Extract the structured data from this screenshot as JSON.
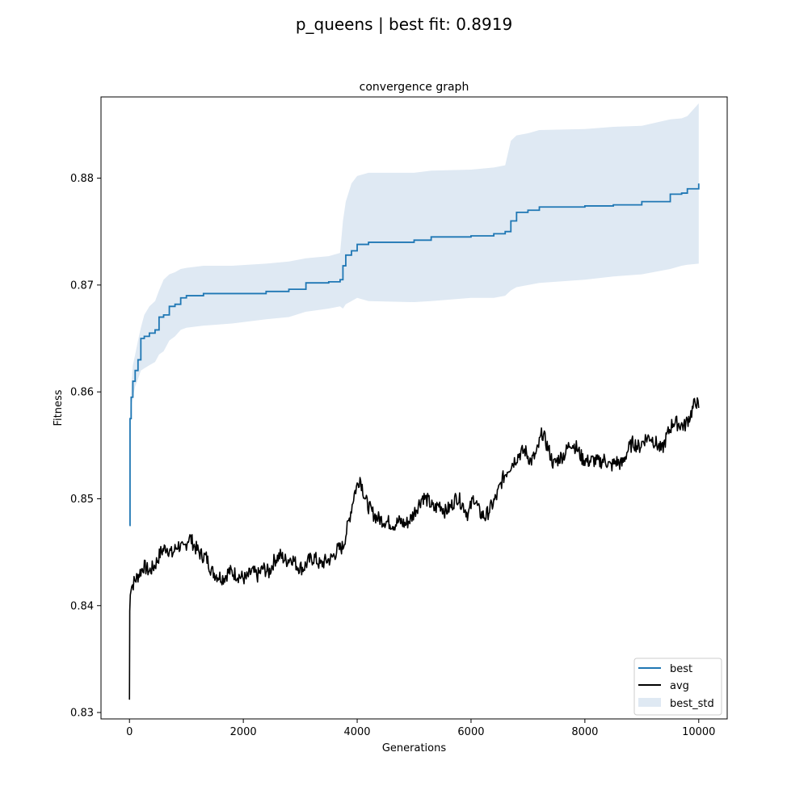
{
  "figure": {
    "suptitle": "p_queens | best fit: 0.8919"
  },
  "chart_data": {
    "type": "line",
    "title": "convergence graph",
    "xlabel": "Generations",
    "ylabel": "Fitness",
    "xlim": [
      -500,
      10500
    ],
    "ylim": [
      0.8294,
      0.8876
    ],
    "xticks": [
      0,
      2000,
      4000,
      6000,
      8000,
      10000
    ],
    "xtick_labels": [
      "0",
      "2000",
      "4000",
      "6000",
      "8000",
      "10000"
    ],
    "yticks": [
      0.83,
      0.84,
      0.85,
      0.86,
      0.87,
      0.88
    ],
    "ytick_labels": [
      "0.83",
      "0.84",
      "0.85",
      "0.86",
      "0.87",
      "0.88"
    ],
    "grid": false,
    "legend_position": "lower-right",
    "series": [
      {
        "name": "best",
        "kind": "line",
        "color": "#1f77b4",
        "x": [
          0,
          10,
          30,
          60,
          100,
          150,
          200,
          260,
          350,
          450,
          520,
          600,
          700,
          800,
          900,
          1000,
          1300,
          1800,
          2400,
          2800,
          3100,
          3500,
          3700,
          3750,
          3800,
          3900,
          4000,
          4200,
          5000,
          5300,
          6000,
          6400,
          6600,
          6700,
          6800,
          7000,
          7200,
          8000,
          8500,
          9000,
          9500,
          9700,
          9800,
          10000
        ],
        "y": [
          0.8475,
          0.8575,
          0.8595,
          0.861,
          0.862,
          0.863,
          0.865,
          0.8652,
          0.8655,
          0.8658,
          0.867,
          0.8672,
          0.868,
          0.8682,
          0.8688,
          0.869,
          0.8692,
          0.8692,
          0.8694,
          0.8696,
          0.8702,
          0.8703,
          0.8705,
          0.8718,
          0.8728,
          0.8732,
          0.8738,
          0.874,
          0.8742,
          0.8745,
          0.8746,
          0.8748,
          0.875,
          0.876,
          0.8768,
          0.877,
          0.8773,
          0.8774,
          0.8775,
          0.8778,
          0.8785,
          0.8786,
          0.879,
          0.8795
        ]
      },
      {
        "name": "avg",
        "kind": "line",
        "color": "#000000",
        "x": [
          0,
          5,
          15,
          40,
          80,
          150,
          250,
          350,
          450,
          550,
          650,
          750,
          850,
          950,
          1050,
          1150,
          1250,
          1350,
          1450,
          1550,
          1650,
          1750,
          1850,
          1950,
          2050,
          2150,
          2250,
          2350,
          2450,
          2550,
          2650,
          2750,
          2850,
          2950,
          3050,
          3150,
          3250,
          3350,
          3450,
          3550,
          3650,
          3750,
          3850,
          3950,
          4050,
          4150,
          4250,
          4350,
          4450,
          4550,
          4650,
          4750,
          4850,
          4950,
          5050,
          5150,
          5250,
          5350,
          5450,
          5550,
          5650,
          5750,
          5850,
          5950,
          6050,
          6150,
          6250,
          6350,
          6450,
          6550,
          6650,
          6750,
          6850,
          6950,
          7050,
          7150,
          7250,
          7350,
          7450,
          7550,
          7650,
          7750,
          7850,
          7950,
          8050,
          8150,
          8250,
          8350,
          8450,
          8550,
          8650,
          8750,
          8850,
          8950,
          9050,
          9150,
          9250,
          9350,
          9450,
          9550,
          9650,
          9750,
          9850,
          9950,
          10000
        ],
        "y": [
          0.8312,
          0.8395,
          0.841,
          0.8418,
          0.8422,
          0.8428,
          0.8437,
          0.8432,
          0.8438,
          0.845,
          0.8455,
          0.8448,
          0.8457,
          0.8452,
          0.8465,
          0.8455,
          0.8448,
          0.8445,
          0.8432,
          0.8428,
          0.8426,
          0.8432,
          0.843,
          0.8427,
          0.8425,
          0.8432,
          0.8428,
          0.8435,
          0.8431,
          0.8443,
          0.8447,
          0.8442,
          0.8445,
          0.8437,
          0.8435,
          0.8442,
          0.8445,
          0.8438,
          0.8442,
          0.8444,
          0.8452,
          0.8455,
          0.8478,
          0.8505,
          0.852,
          0.8498,
          0.8488,
          0.8482,
          0.848,
          0.8478,
          0.8476,
          0.8479,
          0.8476,
          0.8482,
          0.8492,
          0.8502,
          0.8498,
          0.849,
          0.8495,
          0.8488,
          0.8493,
          0.8502,
          0.8495,
          0.8485,
          0.8502,
          0.8487,
          0.8483,
          0.8492,
          0.8502,
          0.8518,
          0.8528,
          0.8535,
          0.8542,
          0.8545,
          0.8535,
          0.8542,
          0.8562,
          0.8548,
          0.8532,
          0.8538,
          0.8542,
          0.8553,
          0.8548,
          0.8538,
          0.8535,
          0.8536,
          0.8534,
          0.8537,
          0.853,
          0.8535,
          0.8532,
          0.8545,
          0.8553,
          0.8548,
          0.8556,
          0.8558,
          0.8552,
          0.8545,
          0.856,
          0.8572,
          0.857,
          0.8568,
          0.8578,
          0.8592,
          0.8585
        ]
      },
      {
        "name": "best_std",
        "kind": "band",
        "color": "#dfe9f3",
        "x": [
          0,
          10,
          30,
          60,
          100,
          150,
          200,
          260,
          350,
          450,
          520,
          600,
          700,
          800,
          900,
          1000,
          1300,
          1800,
          2400,
          2800,
          3100,
          3500,
          3700,
          3750,
          3800,
          3900,
          4000,
          4200,
          5000,
          5300,
          6000,
          6400,
          6600,
          6700,
          6800,
          7000,
          7200,
          8000,
          8500,
          9000,
          9500,
          9700,
          9800,
          10000
        ],
        "lower": [
          0.8475,
          0.857,
          0.8585,
          0.8595,
          0.8605,
          0.8612,
          0.862,
          0.8622,
          0.8625,
          0.8628,
          0.8635,
          0.8638,
          0.8648,
          0.8652,
          0.8658,
          0.866,
          0.8662,
          0.8664,
          0.8668,
          0.867,
          0.8675,
          0.8678,
          0.868,
          0.8678,
          0.8682,
          0.8685,
          0.8688,
          0.8685,
          0.8684,
          0.8685,
          0.8688,
          0.8688,
          0.869,
          0.8695,
          0.8698,
          0.87,
          0.8702,
          0.8705,
          0.8708,
          0.871,
          0.8715,
          0.8718,
          0.8719,
          0.872
        ],
        "upper": [
          0.8475,
          0.858,
          0.8605,
          0.8625,
          0.8635,
          0.8648,
          0.866,
          0.8672,
          0.868,
          0.8685,
          0.8695,
          0.8705,
          0.871,
          0.8712,
          0.8715,
          0.8716,
          0.8718,
          0.8718,
          0.872,
          0.8722,
          0.8725,
          0.8727,
          0.873,
          0.876,
          0.8778,
          0.8795,
          0.8802,
          0.8805,
          0.8805,
          0.8807,
          0.8808,
          0.881,
          0.8812,
          0.8835,
          0.884,
          0.8842,
          0.8845,
          0.8846,
          0.8848,
          0.8849,
          0.8855,
          0.8856,
          0.8858,
          0.887
        ]
      }
    ]
  }
}
